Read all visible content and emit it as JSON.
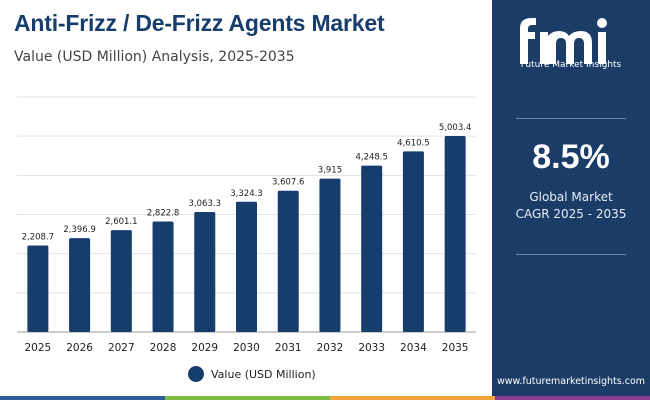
{
  "header": {
    "title": "Anti-Frizz / De-Frizz Agents Market",
    "subtitle": "Value (USD Million) Analysis, 2025-2035"
  },
  "colors": {
    "bar": "#173d6c",
    "title": "#173d6c",
    "sidebar": "#1b3c67",
    "grid": "#e2e2e2",
    "strip": [
      "#2d5c96",
      "#7dbb42",
      "#f2a33a",
      "#8a3d8f",
      "#1b3c67"
    ]
  },
  "chart_data": {
    "type": "bar",
    "categories": [
      "2025",
      "2026",
      "2027",
      "2028",
      "2029",
      "2030",
      "2031",
      "2032",
      "2033",
      "2034",
      "2035"
    ],
    "series": [
      {
        "name": "Value (USD Million)",
        "values": [
          2208.7,
          2396.9,
          2601.1,
          2822.8,
          3063.3,
          3324.3,
          3607.6,
          3915,
          4248.5,
          4610.5,
          5003.4
        ]
      }
    ],
    "data_labels": [
      "2,208.7",
      "2,396.9",
      "2,601.1",
      "2,822.8",
      "3,063.3",
      "3,324.3",
      "3,607.6",
      "3,915",
      "4,248.5",
      "4,610.5",
      "5,003.4"
    ],
    "ylim": [
      0,
      6000
    ],
    "grid": true,
    "legend_position": "bottom"
  },
  "legend": {
    "label": "Value (USD Million)"
  },
  "sidebar": {
    "logo_caption": "Future Market Insights",
    "cagr_value": "8.5%",
    "cagr_label_line1": "Global Market",
    "cagr_label_line2": "CAGR 2025 - 2035",
    "website": "www.futuremarketinsights.com"
  }
}
